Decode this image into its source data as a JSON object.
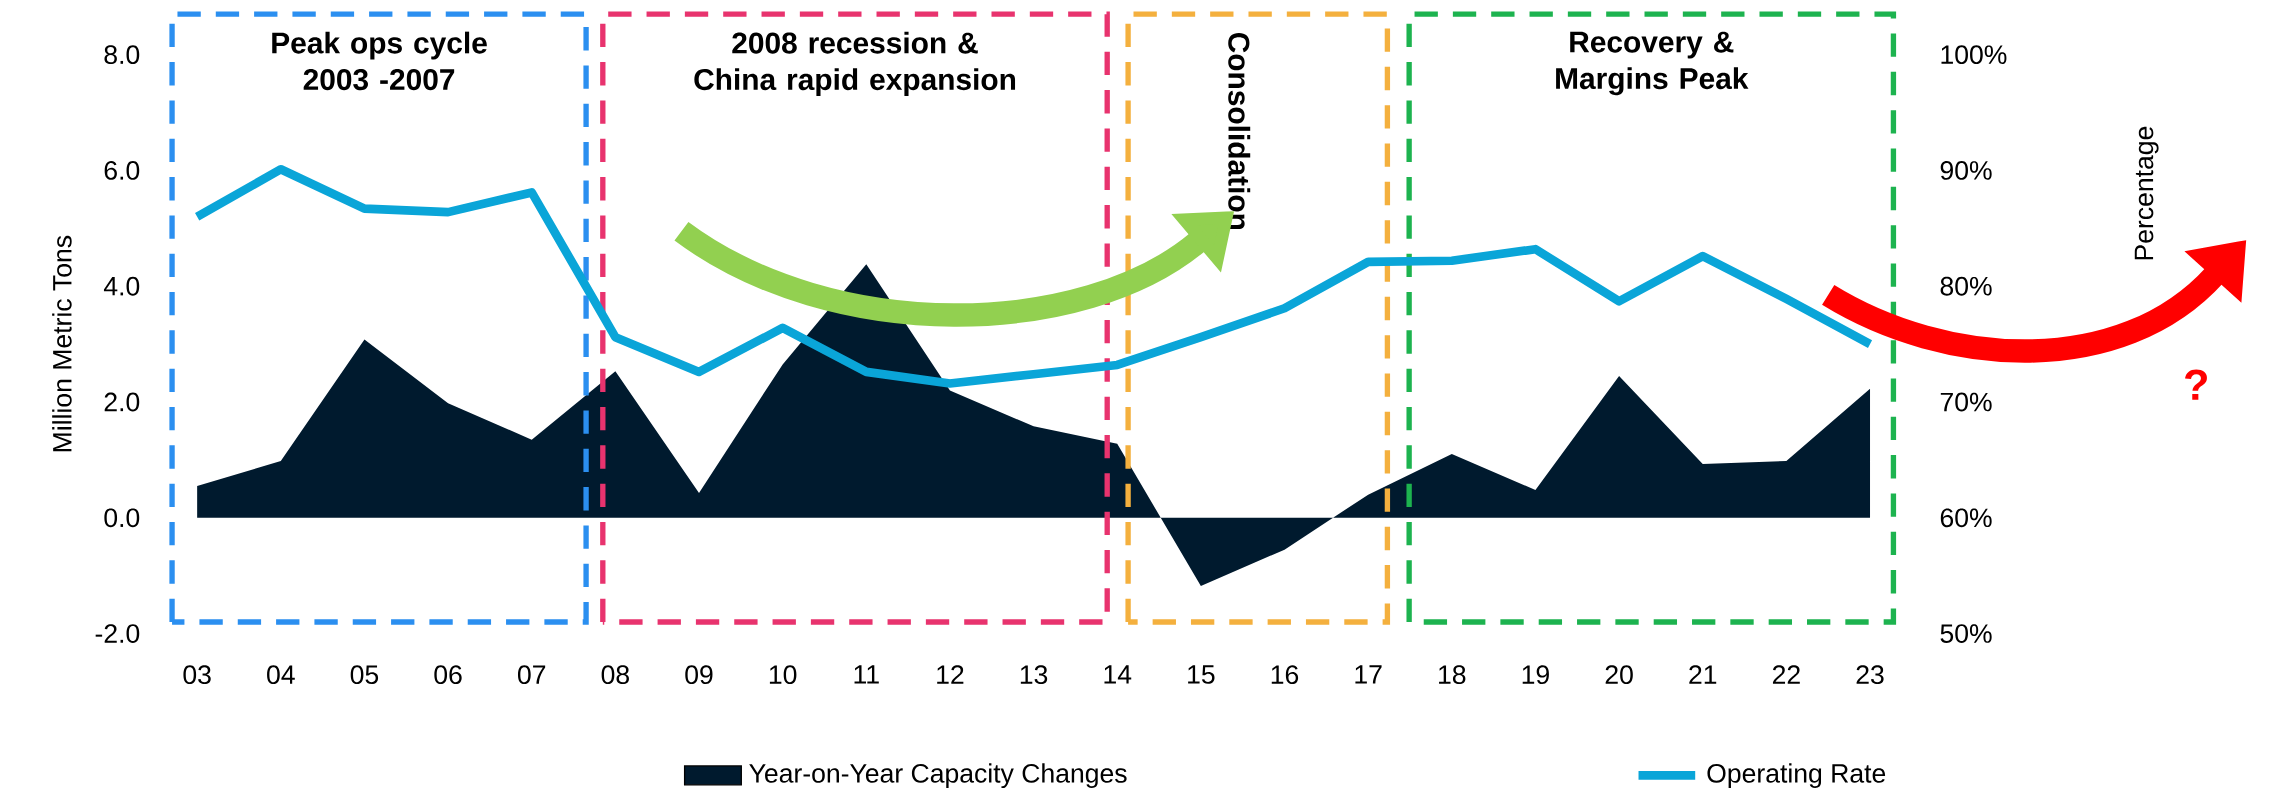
{
  "chart_data": {
    "type": "area",
    "categories": [
      "03",
      "04",
      "05",
      "06",
      "07",
      "08",
      "09",
      "10",
      "11",
      "12",
      "13",
      "14",
      "15",
      "16",
      "17",
      "18",
      "19",
      "20",
      "21",
      "22",
      "23"
    ],
    "series": [
      {
        "name": "Year-on-Year Capacity Changes",
        "color": "#001a2e",
        "values": [
          0.55,
          0.98,
          3.08,
          1.98,
          1.35,
          2.53,
          0.43,
          2.65,
          4.38,
          2.2,
          1.58,
          1.28,
          -1.18,
          -0.55,
          0.4,
          1.1,
          0.48,
          2.45,
          0.93,
          0.98,
          2.23
        ]
      },
      {
        "name": "Operating Rate",
        "type": "line",
        "axis": "y2",
        "color": "#0aa5d8",
        "values": [
          86,
          90.1,
          86.7,
          86.4,
          88.1,
          75.6,
          72.6,
          76.4,
          72.6,
          71.6,
          72.4,
          73.2,
          75.6,
          78.1,
          82.1,
          82.2,
          83.2,
          78.7,
          82.6,
          78.9,
          75
        ]
      }
    ],
    "ylabel": "Million Metric Tons",
    "y2label": "Percentage",
    "ylim": [
      -2,
      8
    ],
    "yticks": [
      {
        "value": -2,
        "label": "-2.0"
      },
      {
        "value": 0,
        "label": "0.0"
      },
      {
        "value": 2,
        "label": "2.0"
      },
      {
        "value": 4,
        "label": "4.0"
      },
      {
        "value": 6,
        "label": "6.0"
      },
      {
        "value": 8,
        "label": "8.0"
      }
    ],
    "y2lim": [
      50,
      100
    ],
    "y2ticks": [
      {
        "value": 50,
        "label": "50%"
      },
      {
        "value": 60,
        "label": "60%"
      },
      {
        "value": 70,
        "label": "70%"
      },
      {
        "value": 80,
        "label": "80%"
      },
      {
        "value": 90,
        "label": "90%"
      },
      {
        "value": 100,
        "label": "100%"
      }
    ],
    "annotations": [
      "Peak ops cycle 2003 -2007",
      "2008 recession & China rapid expansion",
      "Consolidation",
      "Recovery & Margins Peak",
      "?"
    ],
    "legend": "bottom"
  }
}
